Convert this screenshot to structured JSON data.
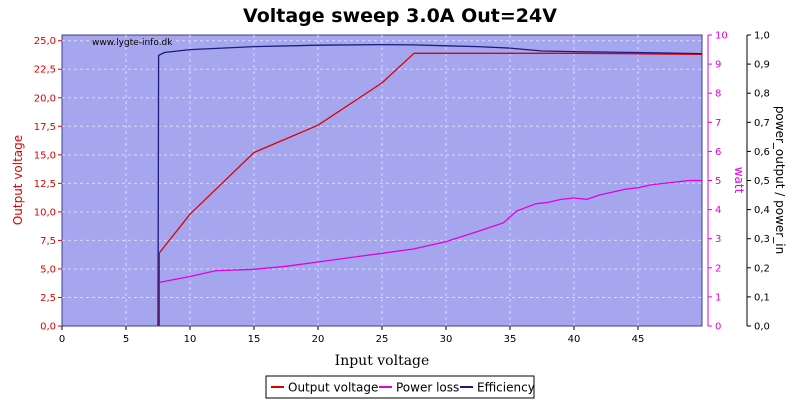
{
  "chart_data": {
    "type": "line",
    "title": "Voltage sweep 3.0A Out=24V",
    "watermark": "www.lygte-info.dk",
    "xlabel": "Input voltage",
    "xlim": [
      0,
      50
    ],
    "x_ticks": [
      "0",
      "5",
      "10",
      "15",
      "20",
      "25",
      "30",
      "35",
      "40",
      "45"
    ],
    "axes": [
      {
        "id": "left",
        "label": "Output voltage",
        "color": "#e00000",
        "ylim": [
          0,
          25.5
        ],
        "ticks": [
          "0,0",
          "2,5",
          "5,0",
          "7,5",
          "10,0",
          "12,5",
          "15,0",
          "17,5",
          "20,0",
          "22,5",
          "25,0"
        ]
      },
      {
        "id": "mid",
        "label": "watt",
        "color": "#e000e0",
        "ylim": [
          0,
          10
        ],
        "ticks": [
          "0",
          "1",
          "2",
          "3",
          "4",
          "5",
          "6",
          "7",
          "8",
          "9",
          "10"
        ]
      },
      {
        "id": "right",
        "label": "power_output / power_in",
        "color": "#000000",
        "ylim": [
          0,
          1.0
        ],
        "ticks": [
          "0,0",
          "0,1",
          "0,2",
          "0,3",
          "0,4",
          "0,5",
          "0,6",
          "0,7",
          "0,8",
          "0,9",
          "1,0"
        ]
      }
    ],
    "grid": true,
    "background_color": "#a6a6ef",
    "legend_position": "bottom",
    "series": [
      {
        "name": "Output voltage",
        "color": "#e00000",
        "axis": "left",
        "points": [
          [
            7.5,
            0.1
          ],
          [
            7.6,
            0.1
          ],
          [
            7.6,
            6.4
          ],
          [
            10,
            9.8
          ],
          [
            15,
            15.2
          ],
          [
            20,
            17.6
          ],
          [
            25,
            21.3
          ],
          [
            27.5,
            23.9
          ],
          [
            30,
            23.9
          ],
          [
            40,
            23.9
          ],
          [
            45,
            23.85
          ],
          [
            50,
            23.8
          ]
        ]
      },
      {
        "name": "Power loss",
        "color": "#e000e0",
        "axis": "mid",
        "points": [
          [
            7.6,
            1.5
          ],
          [
            10,
            1.7
          ],
          [
            12,
            1.9
          ],
          [
            15,
            1.95
          ],
          [
            17.5,
            2.05
          ],
          [
            20,
            2.2
          ],
          [
            22.5,
            2.35
          ],
          [
            25,
            2.5
          ],
          [
            27.5,
            2.65
          ],
          [
            30,
            2.9
          ],
          [
            32.5,
            3.25
          ],
          [
            34.5,
            3.55
          ],
          [
            35.5,
            3.95
          ],
          [
            37,
            4.2
          ],
          [
            38,
            4.25
          ],
          [
            39,
            4.35
          ],
          [
            40,
            4.4
          ],
          [
            41,
            4.35
          ],
          [
            42,
            4.5
          ],
          [
            43,
            4.6
          ],
          [
            44,
            4.7
          ],
          [
            45,
            4.75
          ],
          [
            46,
            4.85
          ],
          [
            47,
            4.9
          ],
          [
            48,
            4.95
          ],
          [
            49,
            5.0
          ],
          [
            50,
            5.0
          ]
        ]
      },
      {
        "name": "Efficiency",
        "color": "#1a1a80",
        "axis": "right",
        "points": [
          [
            7.5,
            0.0
          ],
          [
            7.55,
            0.93
          ],
          [
            8,
            0.94
          ],
          [
            10,
            0.95
          ],
          [
            15,
            0.96
          ],
          [
            20,
            0.965
          ],
          [
            25,
            0.967
          ],
          [
            27.5,
            0.966
          ],
          [
            30,
            0.963
          ],
          [
            32.5,
            0.96
          ],
          [
            35,
            0.955
          ],
          [
            37.5,
            0.945
          ],
          [
            40,
            0.943
          ],
          [
            45,
            0.94
          ],
          [
            50,
            0.936
          ]
        ]
      }
    ]
  }
}
